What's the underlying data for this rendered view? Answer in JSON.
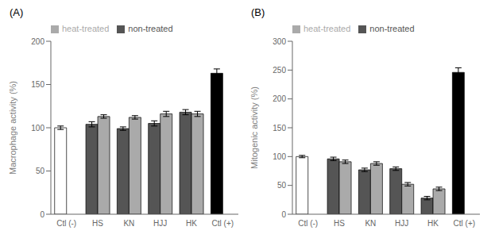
{
  "chart_data": [
    {
      "type": "bar",
      "title": "(A)",
      "ylabel": "Macrophage activity (%)",
      "categories": [
        "Ctl (-)",
        "HS",
        "KN",
        "HJJ",
        "HK",
        "Ctl (+)"
      ],
      "series": [
        {
          "name": "non-treated",
          "color": "#555555",
          "colors": [
            "#ffffff",
            "#555555",
            "#555555",
            "#555555",
            "#555555",
            "#000000"
          ],
          "values": [
            100,
            104,
            99,
            105,
            118,
            163
          ],
          "errors": [
            2,
            3,
            2,
            3,
            3,
            5
          ]
        },
        {
          "name": "heat-treated",
          "color": "#aaaaaa",
          "colors": [
            null,
            "#aaaaaa",
            "#aaaaaa",
            "#aaaaaa",
            "#aaaaaa",
            null
          ],
          "values": [
            null,
            113,
            112,
            116,
            116,
            null
          ],
          "errors": [
            null,
            2,
            2,
            3,
            3,
            null
          ]
        }
      ],
      "ylim": [
        0,
        200
      ],
      "yticks": [
        0,
        50,
        100,
        150,
        200
      ],
      "legend": "upper left"
    },
    {
      "type": "bar",
      "title": "(B)",
      "ylabel": "Mitogenic activity (%)",
      "categories": [
        "Ctl (-)",
        "HS",
        "KN",
        "HJJ",
        "HK",
        "Ctl (+)"
      ],
      "series": [
        {
          "name": "non-treated",
          "color": "#555555",
          "colors": [
            "#ffffff",
            "#555555",
            "#555555",
            "#555555",
            "#555555",
            "#000000"
          ],
          "values": [
            100,
            96,
            77,
            79,
            28,
            246
          ],
          "errors": [
            2,
            3,
            3,
            3,
            3,
            8
          ]
        },
        {
          "name": "heat-treated",
          "color": "#aaaaaa",
          "colors": [
            null,
            "#aaaaaa",
            "#aaaaaa",
            "#aaaaaa",
            "#aaaaaa",
            null
          ],
          "values": [
            null,
            91,
            88,
            52,
            44,
            null
          ],
          "errors": [
            null,
            3,
            3,
            3,
            3,
            null
          ]
        }
      ],
      "ylim": [
        0,
        300
      ],
      "yticks": [
        0,
        50,
        100,
        150,
        200,
        250,
        300
      ],
      "legend": "upper left"
    }
  ]
}
